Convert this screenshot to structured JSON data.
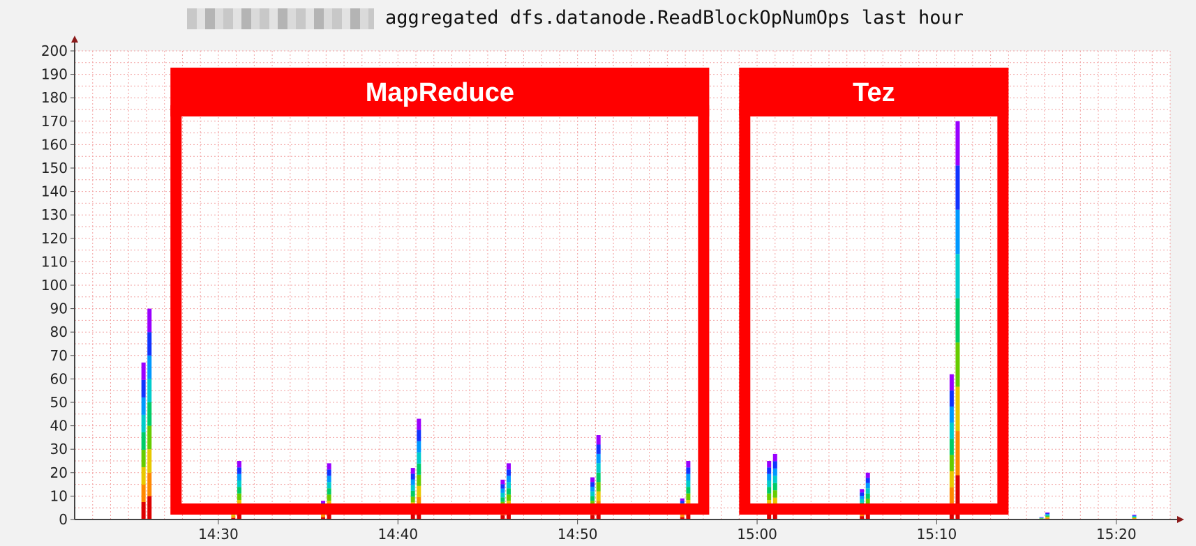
{
  "chart_data": {
    "type": "bar",
    "title": "aggregated dfs.datanode.ReadBlockOpNumOps last hour",
    "xlabel": "",
    "ylabel": "",
    "ylim": [
      0,
      200
    ],
    "xlim": [
      "14:22",
      "15:23"
    ],
    "y_ticks": [
      0,
      10,
      20,
      30,
      40,
      50,
      60,
      70,
      80,
      90,
      100,
      110,
      120,
      130,
      140,
      150,
      160,
      170,
      180,
      190,
      200
    ],
    "x_ticks": [
      "14:30",
      "14:40",
      "14:50",
      "15:00",
      "15:10",
      "15:20"
    ],
    "grid": true,
    "stacked": true,
    "series_colors": [
      "#dd0000",
      "#ff8800",
      "#e8c800",
      "#66cc00",
      "#00cc66",
      "#00cccc",
      "#0099ff",
      "#1133ff",
      "#9900ff"
    ],
    "bars": [
      {
        "time": "14:25:50",
        "total": 67
      },
      {
        "time": "14:26:10",
        "total": 90
      },
      {
        "time": "14:30:50",
        "total": 6
      },
      {
        "time": "14:31:10",
        "total": 25
      },
      {
        "time": "14:35:50",
        "total": 8
      },
      {
        "time": "14:36:10",
        "total": 24
      },
      {
        "time": "14:40:50",
        "total": 22
      },
      {
        "time": "14:41:10",
        "total": 43
      },
      {
        "time": "14:45:50",
        "total": 17
      },
      {
        "time": "14:46:10",
        "total": 24
      },
      {
        "time": "14:50:50",
        "total": 18
      },
      {
        "time": "14:51:10",
        "total": 36
      },
      {
        "time": "14:55:50",
        "total": 9
      },
      {
        "time": "14:56:10",
        "total": 25
      },
      {
        "time": "15:00:40",
        "total": 25
      },
      {
        "time": "15:01:00",
        "total": 28
      },
      {
        "time": "15:05:50",
        "total": 13
      },
      {
        "time": "15:06:10",
        "total": 20
      },
      {
        "time": "15:10:50",
        "total": 62
      },
      {
        "time": "15:11:10",
        "total": 170
      },
      {
        "time": "15:15:50",
        "total": 1
      },
      {
        "time": "15:16:10",
        "total": 3
      },
      {
        "time": "15:21:00",
        "total": 2
      }
    ],
    "annotations": [
      {
        "label": "MapReduce",
        "from": "14:27:20",
        "to": "14:57:20"
      },
      {
        "label": "Tez",
        "from": "14:59:00",
        "to": "15:14:00"
      }
    ]
  }
}
